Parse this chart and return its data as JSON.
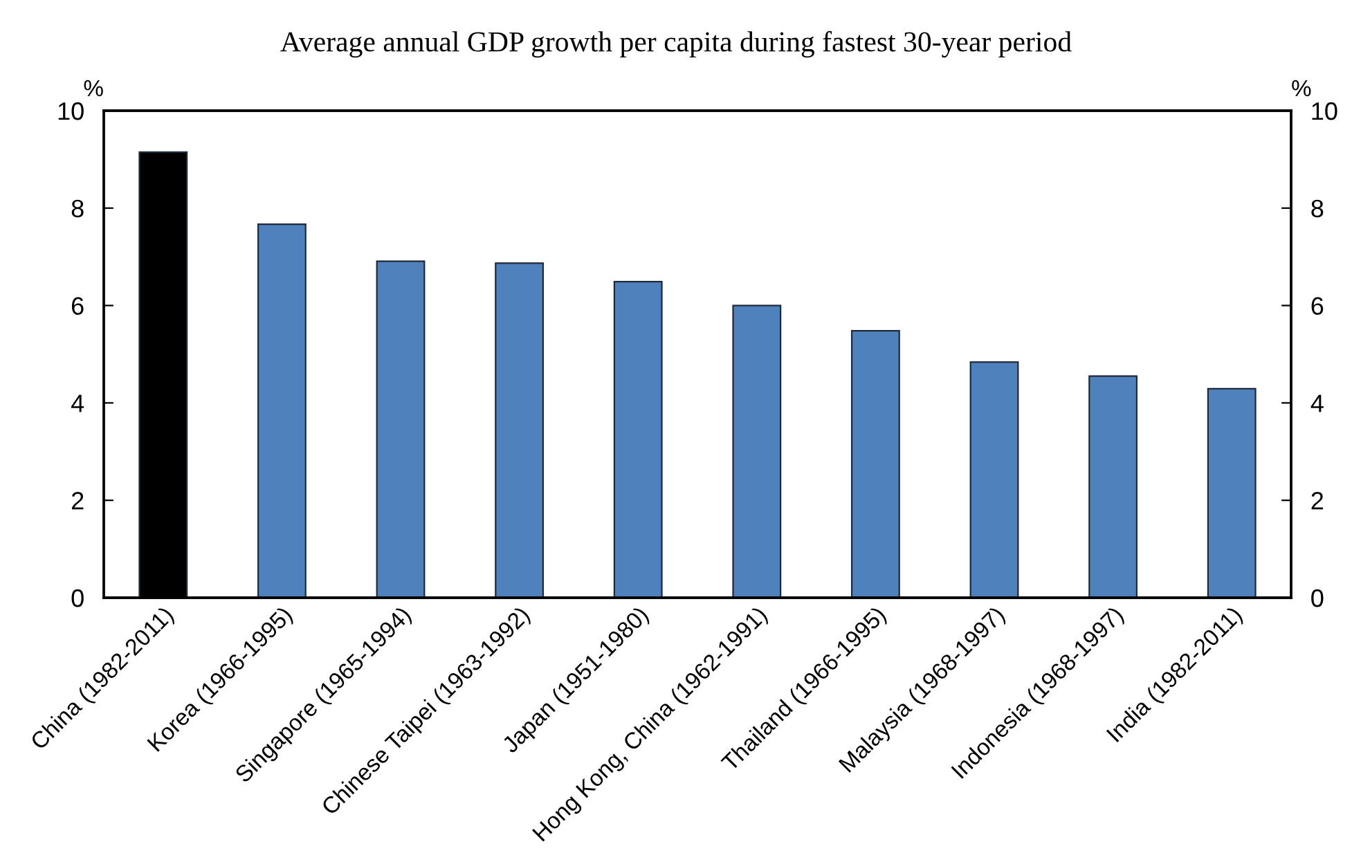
{
  "chart_data": {
    "type": "bar",
    "title": "Average annual GDP growth per capita during fastest 30-year period",
    "ylabel": "%",
    "y2label": "%",
    "categories": [
      "China (1982-2011)",
      "Korea (1966-1995)",
      "Singapore (1965-1994)",
      "Chinese Taipei (1963-1992)",
      "Japan (1951-1980)",
      "Hong Kong, China (1962-1991)",
      "Thailand (1966-1995)",
      "Malaysia (1968-1997)",
      "Indonesia (1968-1997)",
      "India (1982-2011)"
    ],
    "values": [
      9.15,
      7.67,
      6.91,
      6.87,
      6.49,
      6.0,
      5.48,
      4.84,
      4.55,
      4.29
    ],
    "colors": [
      "#000000",
      "#4f81bd",
      "#4f81bd",
      "#4f81bd",
      "#4f81bd",
      "#4f81bd",
      "#4f81bd",
      "#4f81bd",
      "#4f81bd",
      "#4f81bd"
    ],
    "ylim": [
      0,
      10
    ],
    "yticks": [
      0,
      2,
      4,
      6,
      8,
      10
    ],
    "y2lim": [
      0,
      10
    ],
    "y2ticks": [
      0,
      2,
      4,
      6,
      8,
      10
    ],
    "grid": false,
    "legend": false
  }
}
